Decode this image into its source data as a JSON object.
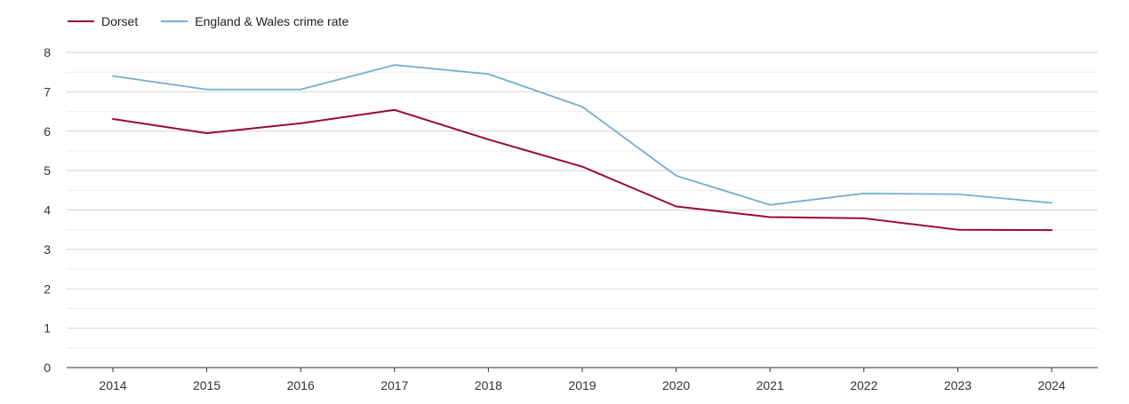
{
  "chart_data": {
    "type": "line",
    "title": "",
    "xlabel": "",
    "ylabel": "",
    "x": [
      "2014",
      "2015",
      "2016",
      "2017",
      "2018",
      "2019",
      "2020",
      "2021",
      "2022",
      "2023",
      "2024"
    ],
    "ylim": [
      0,
      8
    ],
    "yticks": [
      0,
      1,
      2,
      3,
      4,
      5,
      6,
      7,
      8
    ],
    "grid": true,
    "legend_position": "top-left",
    "series": [
      {
        "name": "Dorset",
        "color": "#9b0a32",
        "values": [
          6.31,
          5.95,
          6.2,
          6.54,
          5.79,
          5.1,
          4.09,
          3.82,
          3.79,
          3.5,
          3.49
        ]
      },
      {
        "name": "England & Wales crime rate",
        "color": "#75aecd",
        "values": [
          7.4,
          7.06,
          7.06,
          7.68,
          7.45,
          6.62,
          4.87,
          4.13,
          4.42,
          4.4,
          4.18
        ]
      }
    ]
  }
}
